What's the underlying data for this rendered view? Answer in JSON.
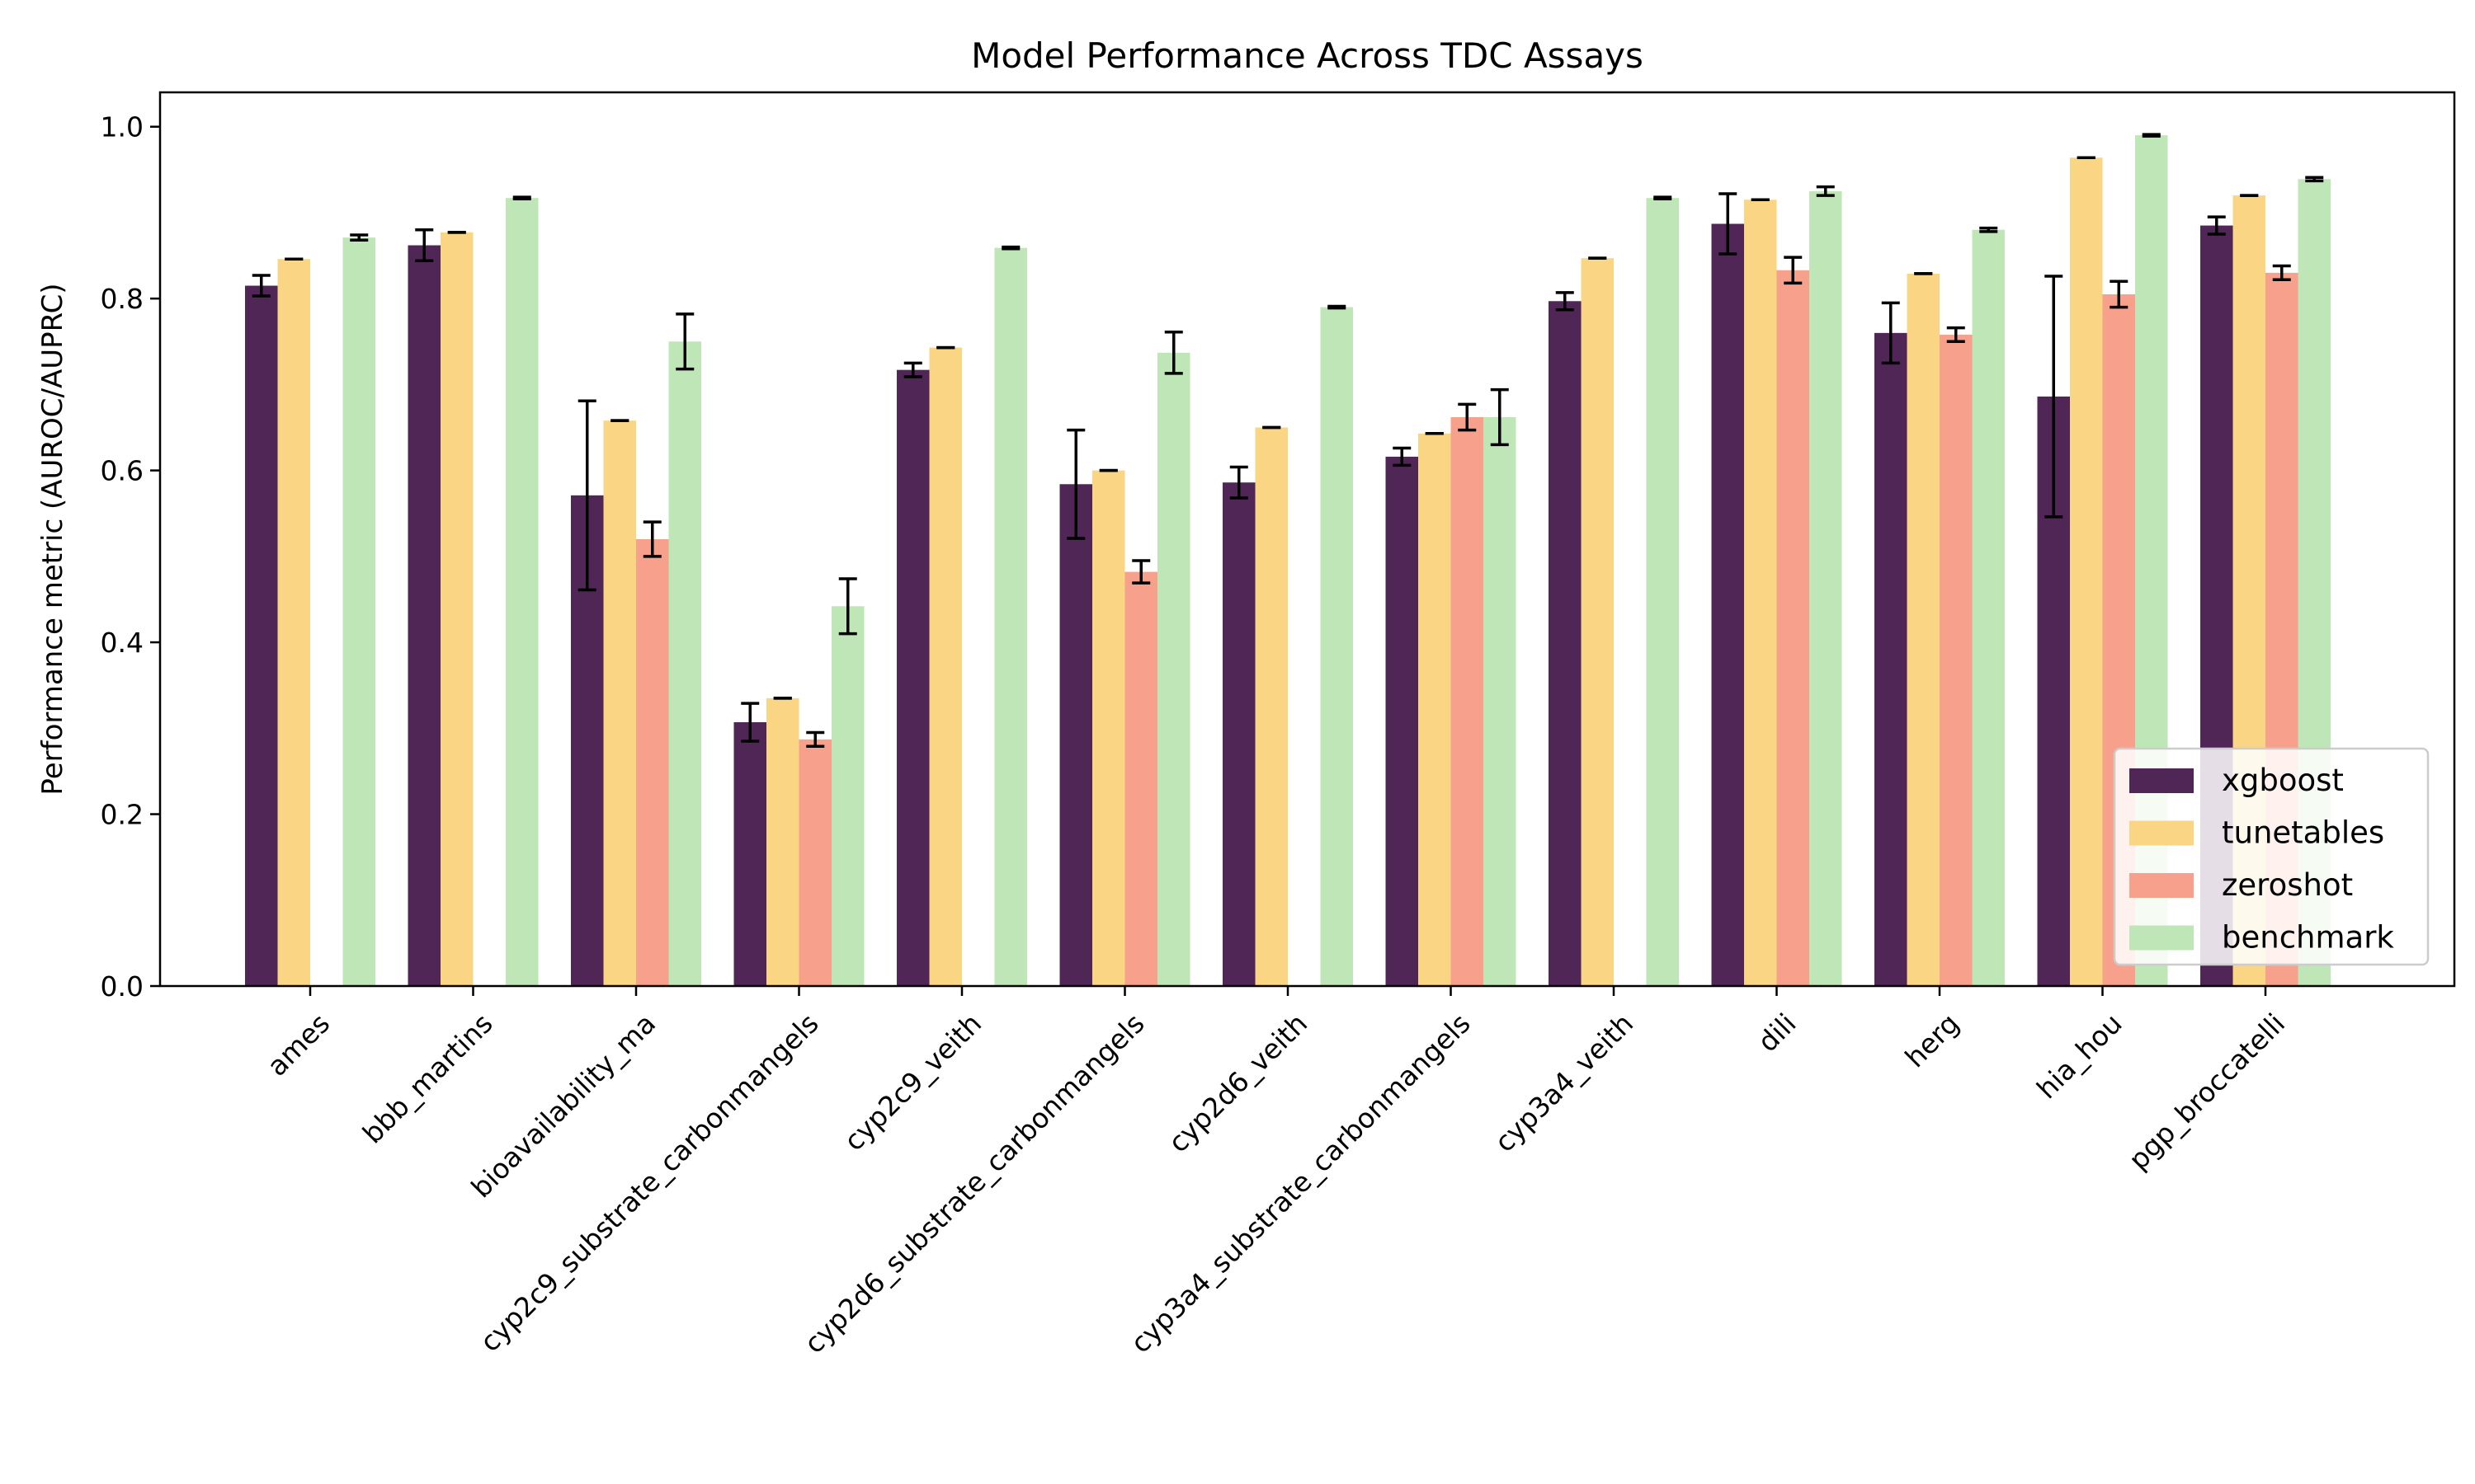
{
  "chart_data": {
    "type": "bar",
    "title": "Model Performance Across TDC Assays",
    "xlabel": "",
    "ylabel": "Performance metric (AUROC/AUPRC)",
    "ylim": [
      0,
      1.04
    ],
    "yticks": [
      0.0,
      0.2,
      0.4,
      0.6,
      0.8,
      1.0
    ],
    "ytick_labels": [
      "0.0",
      "0.2",
      "0.4",
      "0.6",
      "0.8",
      "1.0"
    ],
    "grid": false,
    "legend_position": "lower-right",
    "categories": [
      "ames",
      "bbb_martins",
      "bioavailability_ma",
      "cyp2c9_substrate_carbonmangels",
      "cyp2c9_veith",
      "cyp2d6_substrate_carbonmangels",
      "cyp2d6_veith",
      "cyp3a4_substrate_carbonmangels",
      "cyp3a4_veith",
      "dili",
      "herg",
      "hia_hou",
      "pgp_broccatelli"
    ],
    "series": [
      {
        "name": "xgboost",
        "color": "#4f2656",
        "values": [
          0.815,
          0.862,
          0.571,
          0.307,
          0.717,
          0.584,
          0.586,
          0.616,
          0.797,
          0.887,
          0.76,
          0.686,
          0.885
        ],
        "errors": [
          0.012,
          0.018,
          0.11,
          0.022,
          0.008,
          0.063,
          0.018,
          0.01,
          0.01,
          0.035,
          0.035,
          0.14,
          0.01
        ]
      },
      {
        "name": "tunetables",
        "color": "#f9d584",
        "values": [
          0.846,
          0.877,
          0.658,
          0.335,
          0.743,
          0.6,
          0.65,
          0.643,
          0.847,
          0.915,
          0.829,
          0.964,
          0.92
        ],
        "errors": [
          0,
          0,
          0,
          0,
          0,
          0,
          0,
          0,
          0,
          0,
          0,
          0,
          0
        ]
      },
      {
        "name": "zeroshot",
        "color": "#f7a08c",
        "values": [
          null,
          null,
          0.52,
          0.287,
          null,
          0.482,
          null,
          0.662,
          null,
          0.833,
          0.758,
          0.805,
          0.83
        ],
        "errors": [
          0,
          0,
          0.02,
          0.008,
          0,
          0.013,
          0,
          0.015,
          0,
          0.015,
          0.008,
          0.015,
          0.008
        ]
      },
      {
        "name": "benchmark",
        "color": "#bfe6b6",
        "values": [
          0.871,
          0.917,
          0.75,
          0.442,
          0.859,
          0.737,
          0.79,
          0.662,
          0.917,
          0.925,
          0.88,
          0.99,
          0.939
        ],
        "errors": [
          0.003,
          0.001,
          0.032,
          0.032,
          0.001,
          0.024,
          0.001,
          0.032,
          0.001,
          0.005,
          0.002,
          0.001,
          0.002
        ]
      }
    ]
  }
}
